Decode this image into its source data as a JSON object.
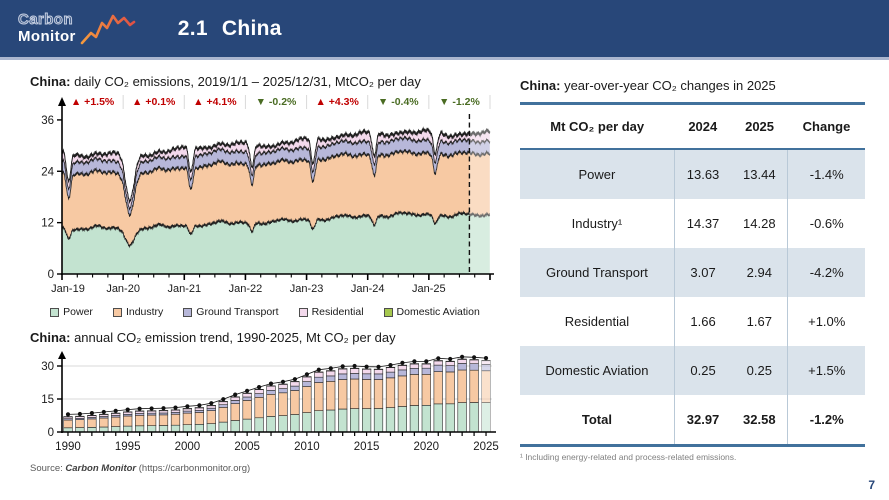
{
  "header": {
    "logo_line1": "Carbon",
    "logo_line2": "Monitor",
    "section_number": "2.1",
    "section_title": "China"
  },
  "charts_panel": {
    "daily_title_bold": "China:",
    "daily_title_rest": " daily CO₂ emissions, 2019/1/1 – 2025/12/31, MtCO₂ per day",
    "annual_title_bold": "China:",
    "annual_title_rest": " annual CO₂ emission trend, 1990-2025, Mt CO₂ per day",
    "legend": [
      {
        "label": "Power",
        "color": "#c3e3d0"
      },
      {
        "label": "Industry",
        "color": "#f7c9a3"
      },
      {
        "label": "Ground Transport",
        "color": "#b7b7d9"
      },
      {
        "label": "Residential",
        "color": "#f3d9ec"
      },
      {
        "label": "Domestic Aviation",
        "color": "#a6c84e"
      }
    ],
    "source_prefix": "Source: ",
    "source_name": "Carbon Monitor",
    "source_url": " (https://carbonmonitor.org)"
  },
  "chart_data": [
    {
      "id": "daily-co2-emissions",
      "type": "area",
      "stacked": true,
      "title": "China: daily CO₂ emissions, 2019/1/1 – 2025/12/31, MtCO₂ per day",
      "ylim": [
        0,
        36
      ],
      "y_ticks": [
        0,
        12,
        24,
        36
      ],
      "x_ticks": [
        "Jan-19",
        "Jan-20",
        "Jan-21",
        "Jan-22",
        "Jan-23",
        "Jan-24",
        "Jan-25"
      ],
      "series": [
        {
          "name": "Power",
          "color": "#c3e3d0",
          "annual_avg": [
            10.4,
            10.6,
            11.5,
            11.9,
            12.9,
            13.63,
            13.44
          ]
        },
        {
          "name": "Industry",
          "color": "#f7c9a3",
          "annual_avg": [
            12.9,
            13.1,
            13.9,
            13.7,
            14.3,
            14.37,
            14.28
          ]
        },
        {
          "name": "Ground Transport",
          "color": "#b7b7d9",
          "annual_avg": [
            2.75,
            2.6,
            2.85,
            2.7,
            3.0,
            3.07,
            2.94
          ]
        },
        {
          "name": "Residential",
          "color": "#f3d9ec",
          "annual_avg": [
            1.55,
            1.58,
            1.6,
            1.62,
            1.65,
            1.66,
            1.67
          ]
        },
        {
          "name": "Domestic Aviation",
          "color": "#a6c84e",
          "annual_avg": [
            0.24,
            0.17,
            0.2,
            0.16,
            0.23,
            0.25,
            0.25
          ]
        }
      ],
      "yoy_changes": [
        {
          "year": "2019",
          "label": "+1.5%",
          "direction": "up"
        },
        {
          "year": "2020",
          "label": "+0.1%",
          "direction": "up"
        },
        {
          "year": "2021",
          "label": "+4.1%",
          "direction": "up"
        },
        {
          "year": "2022",
          "label": "-0.2%",
          "direction": "down"
        },
        {
          "year": "2023",
          "label": "+4.3%",
          "direction": "up"
        },
        {
          "year": "2024",
          "label": "-0.4%",
          "direction": "down"
        },
        {
          "year": "2025",
          "label": "-1.2%",
          "direction": "down"
        }
      ],
      "up_color": "#c00000",
      "down_color": "#4a6c23",
      "forecast_divider": "dashed vertical line near end of 2025 marks start of projected data"
    },
    {
      "id": "annual-co2-trend",
      "type": "bar",
      "stacked": true,
      "title": "China: annual CO₂ emission trend, 1990-2025, Mt CO₂ per day",
      "categories": [
        1990,
        1991,
        1992,
        1993,
        1994,
        1995,
        1996,
        1997,
        1998,
        1999,
        2000,
        2001,
        2002,
        2003,
        2004,
        2005,
        2006,
        2007,
        2008,
        2009,
        2010,
        2011,
        2012,
        2013,
        2014,
        2015,
        2016,
        2017,
        2018,
        2019,
        2020,
        2021,
        2022,
        2023,
        2024,
        2025
      ],
      "values": [
        7.0,
        7.2,
        7.6,
        8.1,
        8.6,
        9.2,
        9.6,
        9.7,
        9.8,
        10.1,
        10.7,
        11.1,
        12.1,
        13.9,
        16.0,
        17.7,
        19.4,
        21.0,
        21.8,
        23.0,
        25.2,
        27.3,
        27.9,
        28.8,
        29.0,
        28.7,
        28.6,
        29.4,
        30.4,
        31.1,
        31.1,
        32.5,
        32.2,
        33.2,
        32.97,
        32.58
      ],
      "ylim": [
        0,
        33
      ],
      "y_ticks": [
        0,
        15,
        30
      ],
      "x_tick_labels": [
        "1990",
        "1995",
        "2000",
        "2005",
        "2010",
        "2015",
        "2020",
        "2025"
      ],
      "marker": "black dot = annual total, last bar (2025) shown faded as projection"
    }
  ],
  "table_panel": {
    "title_bold": "China:",
    "title_rest": " year-over-year CO₂ changes in 2025",
    "columns": [
      "Mt CO₂ per day",
      "2024",
      "2025",
      "Change"
    ],
    "rows": [
      {
        "label": "Power",
        "v2024": "13.63",
        "v2025": "13.44",
        "change": "-1.4%"
      },
      {
        "label": "Industry¹",
        "v2024": "14.37",
        "v2025": "14.28",
        "change": "-0.6%"
      },
      {
        "label": "Ground Transport",
        "v2024": "3.07",
        "v2025": "2.94",
        "change": "-4.2%"
      },
      {
        "label": "Residential",
        "v2024": "1.66",
        "v2025": "1.67",
        "change": "+1.0%"
      },
      {
        "label": "Domestic Aviation",
        "v2024": "0.25",
        "v2025": "0.25",
        "change": "+1.5%"
      }
    ],
    "total_row": {
      "label": "Total",
      "v2024": "32.97",
      "v2025": "32.58",
      "change": "-1.2%"
    },
    "footnote": "¹ Including energy-related and process-related emissions."
  },
  "page_number": "7",
  "colors": {
    "header_bg": "#284779",
    "accent_rule": "#41719c",
    "row_shade": "#dae3eb",
    "up": "#c00000",
    "down": "#4a6c23"
  }
}
